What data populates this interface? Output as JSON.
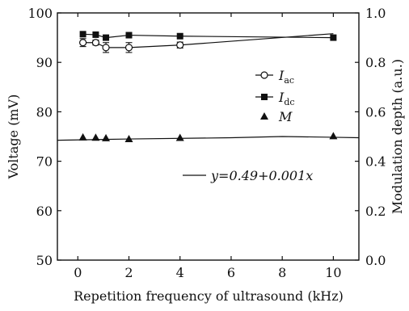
{
  "chart_data": {
    "type": "scatter",
    "xlabel": "Repetition frequency of ultrasound (kHz)",
    "ylabel_left": "Voltage (mV)",
    "ylabel_right": "Modulation depth (a.u.)",
    "xlim": [
      -0.8,
      11
    ],
    "ylim_left": [
      50,
      100
    ],
    "ylim_right": [
      0.0,
      1.0
    ],
    "x_ticks": [
      "0",
      "2",
      "4",
      "6",
      "8",
      "10"
    ],
    "y_left_ticks": [
      "50",
      "60",
      "70",
      "80",
      "90",
      "100"
    ],
    "y_right_ticks": [
      "0.0",
      "0.2",
      "0.4",
      "0.6",
      "0.8",
      "1.0"
    ],
    "legend_position": "right-middle",
    "series": [
      {
        "name_main": "I",
        "name_sub": "ac",
        "axis": "left",
        "marker": "open-circle",
        "color": "#111111",
        "x": [
          0.2,
          0.7,
          1.1,
          2.0,
          4.0
        ],
        "y": [
          94.0,
          94.0,
          93.0,
          93.0,
          93.5
        ],
        "yerr": [
          0.8,
          0.5,
          1.0,
          1.0,
          0.6
        ],
        "line_x": [
          0.2,
          0.7,
          1.1,
          2.0,
          4.0,
          10.0
        ],
        "line_y": [
          94.0,
          94.0,
          93.0,
          93.0,
          93.5,
          95.8
        ]
      },
      {
        "name_main": "I",
        "name_sub": "dc",
        "axis": "left",
        "marker": "filled-square",
        "color": "#111111",
        "x": [
          0.2,
          0.7,
          1.1,
          2.0,
          4.0,
          10.0
        ],
        "y": [
          95.7,
          95.6,
          95.0,
          95.5,
          95.3,
          95.0
        ],
        "line_x": [
          0.2,
          0.7,
          1.1,
          2.0,
          4.0,
          10.0
        ],
        "line_y": [
          95.7,
          95.6,
          95.0,
          95.5,
          95.3,
          95.0
        ]
      },
      {
        "name_main": "M",
        "name_sub": "",
        "axis": "right",
        "marker": "filled-triangle",
        "color": "#111111",
        "x": [
          0.2,
          0.7,
          1.1,
          2.0,
          4.0,
          10.0
        ],
        "y": [
          0.497,
          0.496,
          0.494,
          0.49,
          0.495,
          0.502
        ]
      }
    ],
    "fit_line": {
      "axis": "right",
      "x": [
        -0.8,
        2.0,
        6.0,
        8.0,
        10.0,
        11.0
      ],
      "y": [
        0.485,
        0.49,
        0.495,
        0.5,
        0.497,
        0.495
      ],
      "label": "y=0.49+0.001x"
    }
  }
}
